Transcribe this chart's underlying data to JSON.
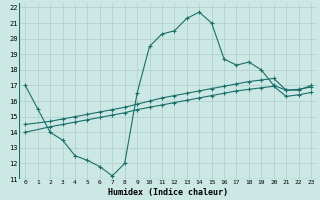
{
  "xlabel": "Humidex (Indice chaleur)",
  "xlim": [
    -0.5,
    23.5
  ],
  "ylim": [
    11,
    22.3
  ],
  "yticks": [
    11,
    12,
    13,
    14,
    15,
    16,
    17,
    18,
    19,
    20,
    21,
    22
  ],
  "xticks": [
    0,
    1,
    2,
    3,
    4,
    5,
    6,
    7,
    8,
    9,
    10,
    11,
    12,
    13,
    14,
    15,
    16,
    17,
    18,
    19,
    20,
    21,
    22,
    23
  ],
  "xtick_labels": [
    "0",
    "1",
    "2",
    "3",
    "4",
    "5",
    "6",
    "7",
    "8",
    "9",
    "10",
    "11",
    "12",
    "13",
    "14",
    "15",
    "16",
    "17",
    "18",
    "19",
    "20",
    "21",
    "22",
    "23"
  ],
  "bg_color": "#cce8e4",
  "grid_color": "#b0cccc",
  "line_color": "#1a6e6a",
  "line1_x": [
    0,
    1,
    2,
    3,
    4,
    5,
    6,
    7,
    8,
    9,
    10,
    11,
    12,
    13,
    14,
    15,
    16,
    17,
    18,
    19,
    20,
    21,
    22,
    23
  ],
  "line1_y": [
    17.0,
    15.5,
    14.0,
    13.5,
    12.5,
    12.2,
    11.8,
    11.2,
    12.0,
    16.5,
    19.5,
    20.3,
    20.5,
    21.3,
    21.7,
    21.0,
    18.7,
    18.3,
    18.5,
    18.0,
    17.0,
    16.7,
    16.7,
    17.0
  ],
  "line2_x": [
    0,
    2,
    3,
    4,
    5,
    6,
    7,
    8,
    9,
    10,
    11,
    12,
    13,
    14,
    15,
    16,
    17,
    18,
    19,
    20,
    21,
    22,
    23
  ],
  "line2_y": [
    14.5,
    14.7,
    14.85,
    15.0,
    15.15,
    15.3,
    15.45,
    15.6,
    15.8,
    16.0,
    16.2,
    16.35,
    16.5,
    16.65,
    16.8,
    16.95,
    17.1,
    17.25,
    17.35,
    17.45,
    16.7,
    16.75,
    16.9
  ],
  "line3_x": [
    0,
    2,
    3,
    4,
    5,
    6,
    7,
    8,
    9,
    10,
    11,
    12,
    13,
    14,
    15,
    16,
    17,
    18,
    19,
    20,
    21,
    22,
    23
  ],
  "line3_y": [
    14.0,
    14.35,
    14.5,
    14.65,
    14.8,
    14.95,
    15.1,
    15.25,
    15.45,
    15.6,
    15.75,
    15.9,
    16.05,
    16.2,
    16.35,
    16.5,
    16.65,
    16.75,
    16.85,
    16.95,
    16.3,
    16.4,
    16.55
  ]
}
